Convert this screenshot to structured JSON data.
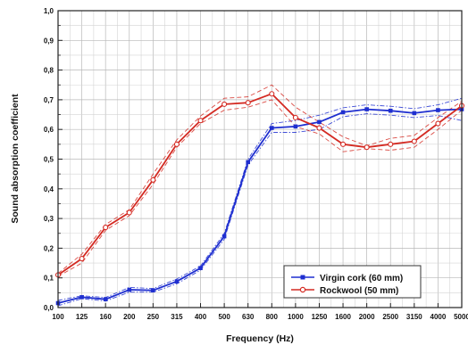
{
  "chart_data": {
    "type": "line",
    "title": "",
    "xlabel": "Frequency (Hz)",
    "ylabel": "Sound absorption coefficient",
    "categories": [
      "100",
      "125",
      "160",
      "200",
      "250",
      "315",
      "400",
      "500",
      "630",
      "800",
      "1000",
      "1250",
      "1600",
      "2000",
      "2500",
      "3150",
      "4000",
      "5000"
    ],
    "ylim": [
      0,
      1.0
    ],
    "yticks": [
      "0,0",
      "0,1",
      "0,2",
      "0,3",
      "0,4",
      "0,5",
      "0,6",
      "0,7",
      "0,8",
      "0,9",
      "1,0"
    ],
    "grid": true,
    "legend_position": "bottom-right",
    "series": [
      {
        "name": "Virgin cork (60 mm)",
        "color": "#1f2fd0",
        "marker": "filled-square",
        "values": [
          0.015,
          0.035,
          0.028,
          0.06,
          0.058,
          0.088,
          0.133,
          0.24,
          0.49,
          0.605,
          0.61,
          0.625,
          0.658,
          0.668,
          0.663,
          0.655,
          0.665,
          0.668
        ],
        "band_upper": [
          0.024,
          0.04,
          0.034,
          0.068,
          0.064,
          0.096,
          0.14,
          0.25,
          0.5,
          0.62,
          0.63,
          0.648,
          0.673,
          0.683,
          0.678,
          0.67,
          0.683,
          0.705
        ],
        "band_lower": [
          0.006,
          0.03,
          0.022,
          0.052,
          0.052,
          0.08,
          0.126,
          0.23,
          0.48,
          0.59,
          0.59,
          0.6,
          0.643,
          0.653,
          0.648,
          0.64,
          0.647,
          0.63
        ]
      },
      {
        "name": "Rockwool (50 mm)",
        "color": "#d42a22",
        "marker": "open-circle",
        "values": [
          0.11,
          0.165,
          0.27,
          0.32,
          0.43,
          0.55,
          0.63,
          0.685,
          0.69,
          0.72,
          0.64,
          0.605,
          0.55,
          0.54,
          0.55,
          0.56,
          0.62,
          0.68
        ],
        "band_upper": [
          0.115,
          0.18,
          0.28,
          0.33,
          0.45,
          0.565,
          0.645,
          0.705,
          0.71,
          0.75,
          0.675,
          0.625,
          0.575,
          0.545,
          0.57,
          0.58,
          0.64,
          0.695
        ],
        "band_lower": [
          0.105,
          0.15,
          0.26,
          0.31,
          0.415,
          0.54,
          0.62,
          0.665,
          0.675,
          0.7,
          0.61,
          0.585,
          0.525,
          0.535,
          0.53,
          0.54,
          0.6,
          0.665
        ]
      }
    ]
  }
}
